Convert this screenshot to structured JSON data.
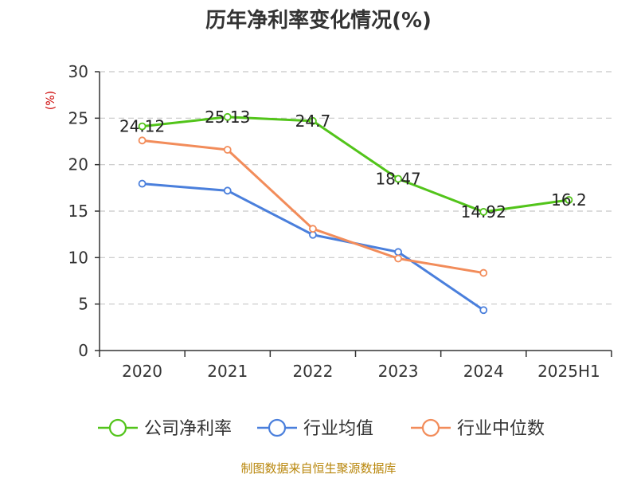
{
  "chart_data": {
    "type": "line",
    "title": "历年净利率变化情况(%)",
    "ylabel": "(%)",
    "categories": [
      "2020",
      "2021",
      "2022",
      "2023",
      "2024",
      "2025H1"
    ],
    "ylim": [
      0,
      30
    ],
    "yticks": [
      0,
      5,
      10,
      15,
      20,
      25,
      30
    ],
    "grid": true,
    "legend_position": "bottom",
    "series": [
      {
        "name": "公司净利率",
        "color": "#52c41a",
        "values": [
          24.12,
          25.13,
          24.7,
          18.47,
          14.92,
          16.2
        ],
        "labels": [
          "24.12",
          "25.13",
          "24.7",
          "18.47",
          "14.92",
          "16.2"
        ]
      },
      {
        "name": "行业均值",
        "color": "#4a7fdc",
        "values": [
          17.95,
          17.2,
          12.45,
          10.6,
          4.35,
          null
        ]
      },
      {
        "name": "行业中位数",
        "color": "#f28c5a",
        "values": [
          22.6,
          21.6,
          13.1,
          9.9,
          8.35,
          null
        ]
      }
    ]
  },
  "footer": {
    "source": "制图数据来自恒生聚源数据库"
  }
}
